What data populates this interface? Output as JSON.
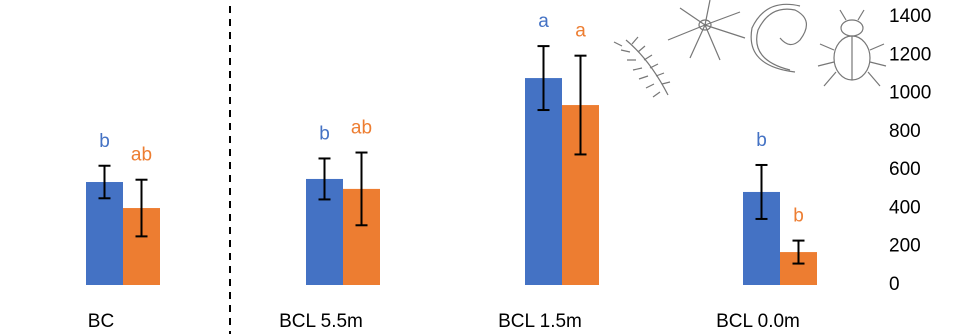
{
  "chart_data": {
    "type": "bar",
    "categories": [
      "BC",
      "BCL 5.5m",
      "BCL 1.5m",
      "BCL 0.0m"
    ],
    "series": [
      {
        "color": "#4472c4",
        "values": [
          538,
          554,
          1081,
          486
        ],
        "errors": [
          85,
          107,
          167,
          141
        ],
        "letters": [
          "b",
          "b",
          "a",
          "b"
        ]
      },
      {
        "color": "#ed7d31",
        "values": [
          402,
          502,
          940,
          172
        ],
        "errors": [
          148,
          190,
          258,
          60
        ],
        "letters": [
          "ab",
          "ab",
          "a",
          "b"
        ]
      }
    ],
    "ylim": [
      0,
      1400
    ],
    "yticks": [
      0,
      200,
      400,
      600,
      800,
      1000,
      1200,
      1400
    ],
    "grid": false
  }
}
